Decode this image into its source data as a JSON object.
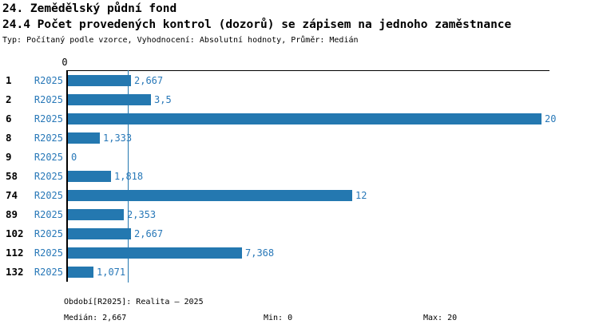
{
  "header": {
    "title_line1": "24. Zemědělský půdní fond",
    "title_line2": "24.4 Počet provedených kontrol (dozorů) se zápisem na jednoho zaměstnance",
    "subtitle": "Typ: Počítaný podle vzorce, Vyhodnocení: Absolutní hodnoty, Průměr: Medián"
  },
  "chart_data": {
    "type": "bar",
    "orientation": "horizontal",
    "title": "24.4 Počet provedených kontrol (dozorů) se zápisem na jednoho zaměstnance",
    "series_label": "R2025",
    "categories": [
      "1",
      "2",
      "6",
      "8",
      "9",
      "58",
      "74",
      "89",
      "102",
      "112",
      "132"
    ],
    "values": [
      2.667,
      3.5,
      20,
      1.333,
      0,
      1.818,
      12,
      2.353,
      2.667,
      7.368,
      1.071
    ],
    "value_labels": [
      "2,667",
      "3,5",
      "20",
      "1,333",
      "0",
      "1,818",
      "12",
      "2,353",
      "2,667",
      "7,368",
      "1,071"
    ],
    "xlim": [
      0,
      20
    ],
    "x_axis_tick_label": "0",
    "median_value": 2.667,
    "median_line": true,
    "grid": false,
    "legend_position": "none",
    "bar_color": "#2478b0",
    "label_color": "#2878b8",
    "axis_color": "#000000"
  },
  "footer": {
    "period_label": "Období[R2025]: Realita – 2025",
    "median_label": "Medián: 2,667",
    "min_label": "Min: 0",
    "max_label": "Max: 20"
  }
}
